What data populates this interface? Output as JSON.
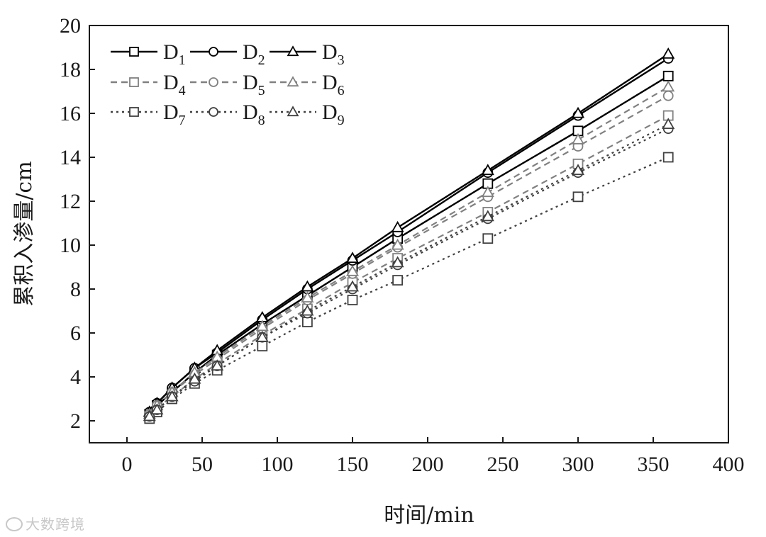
{
  "chart_data": {
    "type": "line",
    "xlabel": "时间/min",
    "ylabel": "累积入渗量/cm",
    "xlim": [
      -25,
      400
    ],
    "ylim": [
      1,
      20
    ],
    "xticks": [
      0,
      50,
      100,
      150,
      200,
      250,
      300,
      350,
      400
    ],
    "yticks": [
      2,
      4,
      6,
      8,
      10,
      12,
      14,
      16,
      18,
      20
    ],
    "grid": false,
    "legend_position": "top-left",
    "x": [
      15,
      20,
      30,
      45,
      60,
      90,
      120,
      150,
      180,
      240,
      300,
      360
    ],
    "series": [
      {
        "name": "D",
        "sub": "1",
        "marker": "square",
        "line": "solid",
        "color": "#000000",
        "values": [
          2.3,
          2.7,
          3.3,
          4.2,
          5.0,
          6.4,
          7.7,
          9.0,
          10.3,
          12.8,
          15.2,
          17.7
        ]
      },
      {
        "name": "D",
        "sub": "2",
        "marker": "circle",
        "line": "solid",
        "color": "#000000",
        "values": [
          2.4,
          2.8,
          3.5,
          4.4,
          5.1,
          6.6,
          8.0,
          9.3,
          10.6,
          13.3,
          15.9,
          18.5
        ]
      },
      {
        "name": "D",
        "sub": "3",
        "marker": "triangle",
        "line": "solid",
        "color": "#000000",
        "values": [
          2.4,
          2.8,
          3.5,
          4.4,
          5.2,
          6.7,
          8.1,
          9.4,
          10.8,
          13.4,
          16.0,
          18.7
        ]
      },
      {
        "name": "D",
        "sub": "4",
        "marker": "square",
        "line": "dashed",
        "color": "#808080",
        "values": [
          2.2,
          2.6,
          3.1,
          3.9,
          4.6,
          5.9,
          7.1,
          8.3,
          9.4,
          11.5,
          13.7,
          15.9
        ]
      },
      {
        "name": "D",
        "sub": "5",
        "marker": "circle",
        "line": "dashed",
        "color": "#808080",
        "values": [
          2.3,
          2.7,
          3.3,
          4.1,
          4.8,
          6.2,
          7.5,
          8.7,
          9.9,
          12.2,
          14.5,
          16.8
        ]
      },
      {
        "name": "D",
        "sub": "6",
        "marker": "triangle",
        "line": "dashed",
        "color": "#808080",
        "values": [
          2.3,
          2.7,
          3.3,
          4.2,
          4.9,
          6.3,
          7.6,
          8.8,
          10.0,
          12.4,
          14.8,
          17.2
        ]
      },
      {
        "name": "D",
        "sub": "7",
        "marker": "square",
        "line": "dotted",
        "color": "#404040",
        "values": [
          2.1,
          2.4,
          3.0,
          3.7,
          4.3,
          5.4,
          6.5,
          7.5,
          8.4,
          10.3,
          12.2,
          14.0
        ]
      },
      {
        "name": "D",
        "sub": "8",
        "marker": "circle",
        "line": "dotted",
        "color": "#404040",
        "values": [
          2.2,
          2.5,
          3.1,
          3.8,
          4.5,
          5.8,
          6.9,
          8.0,
          9.1,
          11.2,
          13.3,
          15.3
        ]
      },
      {
        "name": "D",
        "sub": "9",
        "marker": "triangle",
        "line": "dotted",
        "color": "#404040",
        "values": [
          2.2,
          2.5,
          3.1,
          3.9,
          4.5,
          5.8,
          7.0,
          8.1,
          9.2,
          11.3,
          13.4,
          15.5
        ]
      }
    ]
  },
  "watermark": {
    "text": "大数跨境"
  }
}
